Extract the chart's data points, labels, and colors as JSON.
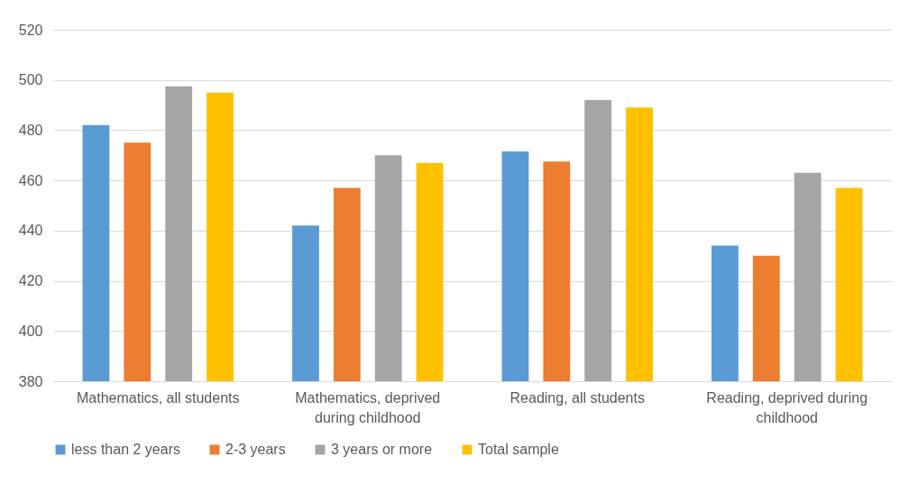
{
  "chart_data": {
    "type": "bar",
    "categories": [
      "Mathematics, all students",
      "Mathematics, deprived during childhood",
      "Reading, all students",
      "Reading, deprived during childhood"
    ],
    "series": [
      {
        "name": "less than 2 years",
        "color": "#5b9bd5",
        "values": [
          482,
          442,
          471.5,
          434
        ]
      },
      {
        "name": "2-3 years",
        "color": "#ed7d31",
        "values": [
          475,
          457,
          467.5,
          430
        ]
      },
      {
        "name": "3 years or more",
        "color": "#a5a5a5",
        "values": [
          497.5,
          470,
          492,
          463
        ]
      },
      {
        "name": "Total sample",
        "color": "#ffc000",
        "values": [
          495,
          467,
          489,
          457
        ]
      }
    ],
    "ylim": [
      380,
      520
    ],
    "yticks": [
      380,
      400,
      420,
      440,
      460,
      480,
      500,
      520
    ],
    "grid": "y",
    "legend": "bottom"
  }
}
